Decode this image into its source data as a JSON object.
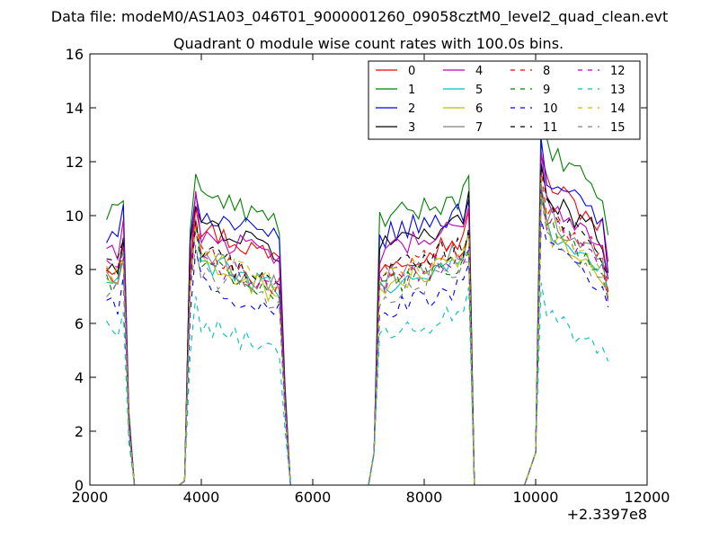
{
  "figure": {
    "suptitle": "Data file: modeM0/AS1A03_046T01_9000001260_09058cztM0_level2_quad_clean.evt",
    "title": "Quadrant 0 module wise count rates with 100.0s bins.",
    "offset_label": "+2.3397e8"
  },
  "chart_data": {
    "type": "line",
    "title": "Quadrant 0 module wise count rates with 100.0s bins.",
    "xlabel": "",
    "ylabel": "",
    "x_offset": 233970000,
    "xlim": [
      2000,
      12000
    ],
    "ylim": [
      0,
      16
    ],
    "xticks": [
      2000,
      4000,
      6000,
      8000,
      10000,
      12000
    ],
    "xtick_labels": [
      "2000",
      "4000",
      "6000",
      "8000",
      "10000",
      "12000"
    ],
    "yticks": [
      0,
      2,
      4,
      6,
      8,
      10,
      12,
      14,
      16
    ],
    "ytick_labels": [
      "0",
      "2",
      "4",
      "6",
      "8",
      "10",
      "12",
      "14",
      "16"
    ],
    "bin_width": 100,
    "x_start": 2300,
    "x_end": 11300,
    "legend_position": "top-right",
    "legend_ncol": 4,
    "segments": [
      {
        "rise": 2300,
        "fall": 2600,
        "zero_at": 2800
      },
      {
        "start0": 3700,
        "peak": 3900,
        "fall": 5400,
        "zero_at": 5600
      },
      {
        "start0": 7000,
        "rise": 7200,
        "fall": 8800,
        "zero_at": 8900
      },
      {
        "start0": 9900,
        "peak": 10100,
        "fall": 11300
      }
    ],
    "series": [
      {
        "name": "0",
        "color": "#ff0000",
        "dash": false,
        "levels": [
          8.2,
          9.6,
          8.2,
          11.8
        ]
      },
      {
        "name": "1",
        "color": "#008000",
        "dash": false,
        "levels": [
          10.0,
          10.9,
          9.8,
          13.0
        ]
      },
      {
        "name": "2",
        "color": "#0000ff",
        "dash": false,
        "levels": [
          9.1,
          10.2,
          9.2,
          12.0
        ]
      },
      {
        "name": "3",
        "color": "#000000",
        "dash": false,
        "levels": [
          8.0,
          9.8,
          8.9,
          11.4
        ]
      },
      {
        "name": "4",
        "color": "#bf00bf",
        "dash": false,
        "levels": [
          8.8,
          9.5,
          8.6,
          11.2
        ]
      },
      {
        "name": "5",
        "color": "#00bfbf",
        "dash": false,
        "levels": [
          7.5,
          8.4,
          7.3,
          10.2
        ]
      },
      {
        "name": "6",
        "color": "#bfbf00",
        "dash": false,
        "levels": [
          7.6,
          8.3,
          7.3,
          10.0
        ]
      },
      {
        "name": "7",
        "color": "#808080",
        "dash": false,
        "levels": [
          7.8,
          8.6,
          7.7,
          10.6
        ]
      },
      {
        "name": "8",
        "color": "#ff0000",
        "dash": true,
        "levels": [
          7.9,
          8.6,
          7.8,
          10.7
        ]
      },
      {
        "name": "9",
        "color": "#008000",
        "dash": true,
        "levels": [
          7.6,
          8.3,
          7.4,
          10.2
        ]
      },
      {
        "name": "10",
        "color": "#0000ff",
        "dash": true,
        "levels": [
          6.6,
          7.6,
          6.4,
          9.4
        ]
      },
      {
        "name": "11",
        "color": "#000000",
        "dash": true,
        "levels": [
          8.1,
          8.7,
          8.0,
          10.8
        ]
      },
      {
        "name": "12",
        "color": "#bf00bf",
        "dash": true,
        "levels": [
          8.0,
          8.4,
          7.5,
          10.4
        ]
      },
      {
        "name": "13",
        "color": "#00bfbf",
        "dash": true,
        "levels": [
          5.7,
          6.0,
          5.5,
          7.0
        ]
      },
      {
        "name": "14",
        "color": "#bfbf00",
        "dash": true,
        "levels": [
          7.7,
          8.6,
          7.7,
          10.3
        ]
      },
      {
        "name": "15",
        "color": "#808080",
        "dash": true,
        "levels": [
          7.4,
          8.0,
          7.0,
          9.8
        ]
      }
    ]
  }
}
